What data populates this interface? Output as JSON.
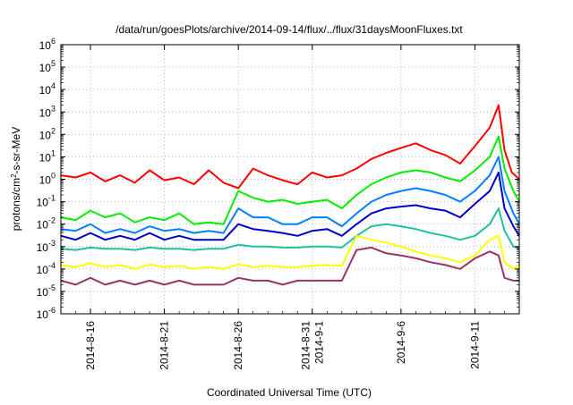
{
  "chart_data": {
    "type": "line",
    "title": "/data/run/goesPlots/archive/2014-09-14/flux/../flux/31daysMoonFluxes.txt",
    "xlabel": "Coordinated Universal Time (UTC)",
    "ylabel": "protons/cm²-s-sr-MeV",
    "yscale": "log",
    "ylim": [
      1e-06,
      1000000.0
    ],
    "xlim": [
      "2014-08-14",
      "2014-09-14"
    ],
    "grid": true,
    "legend": "none",
    "y_ticks": [
      {
        "base": "10",
        "exp": "-6"
      },
      {
        "base": "10",
        "exp": "-5"
      },
      {
        "base": "10",
        "exp": "-4"
      },
      {
        "base": "10",
        "exp": "-3"
      },
      {
        "base": "10",
        "exp": "-2"
      },
      {
        "base": "10",
        "exp": "-1"
      },
      {
        "base": "10",
        "exp": "0"
      },
      {
        "base": "10",
        "exp": "1"
      },
      {
        "base": "10",
        "exp": "2"
      },
      {
        "base": "10",
        "exp": "3"
      },
      {
        "base": "10",
        "exp": "4"
      },
      {
        "base": "10",
        "exp": "5"
      },
      {
        "base": "10",
        "exp": "6"
      }
    ],
    "x_ticks": [
      {
        "x": "2014-08-16",
        "lines": [
          "2014-8-16"
        ]
      },
      {
        "x": "2014-08-21",
        "lines": [
          "2014-8-21"
        ]
      },
      {
        "x": "2014-08-26",
        "lines": [
          "2014-8-26"
        ]
      },
      {
        "x": "2014-08-31",
        "lines": [
          "2014-8-31",
          "2014-9-1"
        ]
      },
      {
        "x": "2014-09-06",
        "lines": [
          "2014-9-6"
        ]
      },
      {
        "x": "2014-09-11",
        "lines": [
          "2014-9-11"
        ]
      }
    ],
    "series": [
      {
        "color": "#ff0000",
        "values": [
          [
            "2014-08-14",
            1.5
          ],
          [
            "2014-08-15",
            1.2
          ],
          [
            "2014-08-16",
            2.0
          ],
          [
            "2014-08-17",
            0.8
          ],
          [
            "2014-08-18",
            1.5
          ],
          [
            "2014-08-19",
            0.7
          ],
          [
            "2014-08-20",
            2.5
          ],
          [
            "2014-08-21",
            0.9
          ],
          [
            "2014-08-22",
            1.2
          ],
          [
            "2014-08-23",
            0.6
          ],
          [
            "2014-08-24",
            2.5
          ],
          [
            "2014-08-25",
            0.7
          ],
          [
            "2014-08-26",
            0.4
          ],
          [
            "2014-08-27",
            3.0
          ],
          [
            "2014-08-28",
            1.5
          ],
          [
            "2014-08-29",
            0.9
          ],
          [
            "2014-08-30",
            0.6
          ],
          [
            "2014-08-31",
            2.0
          ],
          [
            "2014-09-01",
            1.2
          ],
          [
            "2014-09-02",
            1.5
          ],
          [
            "2014-09-03",
            3.0
          ],
          [
            "2014-09-04",
            8
          ],
          [
            "2014-09-05",
            15
          ],
          [
            "2014-09-06",
            25
          ],
          [
            "2014-09-07",
            40
          ],
          [
            "2014-09-08",
            20
          ],
          [
            "2014-09-09",
            12
          ],
          [
            "2014-09-10",
            5
          ],
          [
            "2014-09-11",
            30
          ],
          [
            "2014-09-12",
            200
          ],
          [
            "2014-09-12.6",
            2000
          ],
          [
            "2014-09-13",
            20
          ],
          [
            "2014-09-13.5",
            2
          ],
          [
            "2014-09-14",
            1.0
          ]
        ]
      },
      {
        "color": "#00ee00",
        "values": [
          [
            "2014-08-14",
            0.02
          ],
          [
            "2014-08-15",
            0.015
          ],
          [
            "2014-08-16",
            0.04
          ],
          [
            "2014-08-17",
            0.02
          ],
          [
            "2014-08-18",
            0.03
          ],
          [
            "2014-08-19",
            0.012
          ],
          [
            "2014-08-20",
            0.02
          ],
          [
            "2014-08-21",
            0.015
          ],
          [
            "2014-08-22",
            0.03
          ],
          [
            "2014-08-23",
            0.01
          ],
          [
            "2014-08-24",
            0.012
          ],
          [
            "2014-08-25",
            0.01
          ],
          [
            "2014-08-26",
            0.3
          ],
          [
            "2014-08-27",
            0.15
          ],
          [
            "2014-08-28",
            0.1
          ],
          [
            "2014-08-29",
            0.12
          ],
          [
            "2014-08-30",
            0.08
          ],
          [
            "2014-08-31",
            0.1
          ],
          [
            "2014-09-01",
            0.12
          ],
          [
            "2014-09-02",
            0.05
          ],
          [
            "2014-09-03",
            0.2
          ],
          [
            "2014-09-04",
            0.6
          ],
          [
            "2014-09-05",
            1.2
          ],
          [
            "2014-09-06",
            2.0
          ],
          [
            "2014-09-07",
            2.5
          ],
          [
            "2014-09-08",
            2.0
          ],
          [
            "2014-09-09",
            1.2
          ],
          [
            "2014-09-10",
            0.8
          ],
          [
            "2014-09-11",
            2.5
          ],
          [
            "2014-09-12",
            10
          ],
          [
            "2014-09-12.6",
            80
          ],
          [
            "2014-09-13",
            3
          ],
          [
            "2014-09-13.6",
            0.3
          ],
          [
            "2014-09-14",
            0.1
          ]
        ]
      },
      {
        "color": "#0080ff",
        "values": [
          [
            "2014-08-14",
            0.006
          ],
          [
            "2014-08-15",
            0.005
          ],
          [
            "2014-08-16",
            0.01
          ],
          [
            "2014-08-17",
            0.004
          ],
          [
            "2014-08-18",
            0.006
          ],
          [
            "2014-08-19",
            0.004
          ],
          [
            "2014-08-20",
            0.008
          ],
          [
            "2014-08-21",
            0.005
          ],
          [
            "2014-08-22",
            0.006
          ],
          [
            "2014-08-23",
            0.004
          ],
          [
            "2014-08-24",
            0.005
          ],
          [
            "2014-08-25",
            0.004
          ],
          [
            "2014-08-26",
            0.05
          ],
          [
            "2014-08-27",
            0.02
          ],
          [
            "2014-08-28",
            0.02
          ],
          [
            "2014-08-29",
            0.01
          ],
          [
            "2014-08-30",
            0.01
          ],
          [
            "2014-08-31",
            0.02
          ],
          [
            "2014-09-01",
            0.02
          ],
          [
            "2014-09-02",
            0.008
          ],
          [
            "2014-09-03",
            0.03
          ],
          [
            "2014-09-04",
            0.1
          ],
          [
            "2014-09-05",
            0.2
          ],
          [
            "2014-09-06",
            0.3
          ],
          [
            "2014-09-07",
            0.4
          ],
          [
            "2014-09-08",
            0.3
          ],
          [
            "2014-09-09",
            0.2
          ],
          [
            "2014-09-10",
            0.1
          ],
          [
            "2014-09-11",
            0.3
          ],
          [
            "2014-09-12",
            1.5
          ],
          [
            "2014-09-12.6",
            10
          ],
          [
            "2014-09-13",
            0.3
          ],
          [
            "2014-09-13.6",
            0.03
          ],
          [
            "2014-09-14",
            0.01
          ]
        ]
      },
      {
        "color": "#0000cc",
        "values": [
          [
            "2014-08-14",
            0.003
          ],
          [
            "2014-08-15",
            0.002
          ],
          [
            "2014-08-16",
            0.004
          ],
          [
            "2014-08-17",
            0.002
          ],
          [
            "2014-08-18",
            0.003
          ],
          [
            "2014-08-19",
            0.002
          ],
          [
            "2014-08-20",
            0.004
          ],
          [
            "2014-08-21",
            0.002
          ],
          [
            "2014-08-22",
            0.003
          ],
          [
            "2014-08-23",
            0.002
          ],
          [
            "2014-08-24",
            0.002
          ],
          [
            "2014-08-25",
            0.002
          ],
          [
            "2014-08-26",
            0.01
          ],
          [
            "2014-08-27",
            0.006
          ],
          [
            "2014-08-28",
            0.005
          ],
          [
            "2014-08-29",
            0.004
          ],
          [
            "2014-08-30",
            0.003
          ],
          [
            "2014-08-31",
            0.005
          ],
          [
            "2014-09-01",
            0.006
          ],
          [
            "2014-09-02",
            0.003
          ],
          [
            "2014-09-03",
            0.01
          ],
          [
            "2014-09-04",
            0.03
          ],
          [
            "2014-09-05",
            0.05
          ],
          [
            "2014-09-06",
            0.06
          ],
          [
            "2014-09-07",
            0.07
          ],
          [
            "2014-09-08",
            0.05
          ],
          [
            "2014-09-09",
            0.04
          ],
          [
            "2014-09-10",
            0.02
          ],
          [
            "2014-09-11",
            0.08
          ],
          [
            "2014-09-12",
            0.3
          ],
          [
            "2014-09-12.6",
            2
          ],
          [
            "2014-09-13",
            0.05
          ],
          [
            "2014-09-13.6",
            0.008
          ],
          [
            "2014-09-14",
            0.003
          ]
        ]
      },
      {
        "color": "#20c0a0",
        "values": [
          [
            "2014-08-14",
            0.0008
          ],
          [
            "2014-08-15",
            0.0007
          ],
          [
            "2014-08-16",
            0.0009
          ],
          [
            "2014-08-17",
            0.0008
          ],
          [
            "2014-08-18",
            0.0008
          ],
          [
            "2014-08-19",
            0.0007
          ],
          [
            "2014-08-20",
            0.0009
          ],
          [
            "2014-08-21",
            0.0008
          ],
          [
            "2014-08-22",
            0.0008
          ],
          [
            "2014-08-23",
            0.0007
          ],
          [
            "2014-08-24",
            0.0008
          ],
          [
            "2014-08-25",
            0.0008
          ],
          [
            "2014-08-26",
            0.0012
          ],
          [
            "2014-08-27",
            0.001
          ],
          [
            "2014-08-28",
            0.001
          ],
          [
            "2014-08-29",
            0.0009
          ],
          [
            "2014-08-30",
            0.0009
          ],
          [
            "2014-08-31",
            0.001
          ],
          [
            "2014-09-01",
            0.001
          ],
          [
            "2014-09-02",
            0.0009
          ],
          [
            "2014-09-03",
            0.003
          ],
          [
            "2014-09-04",
            0.008
          ],
          [
            "2014-09-05",
            0.01
          ],
          [
            "2014-09-06",
            0.008
          ],
          [
            "2014-09-07",
            0.006
          ],
          [
            "2014-09-08",
            0.004
          ],
          [
            "2014-09-09",
            0.003
          ],
          [
            "2014-09-10",
            0.002
          ],
          [
            "2014-09-11",
            0.003
          ],
          [
            "2014-09-12",
            0.01
          ],
          [
            "2014-09-12.6",
            0.05
          ],
          [
            "2014-09-13",
            0.005
          ],
          [
            "2014-09-13.6",
            0.001
          ],
          [
            "2014-09-14",
            0.0008
          ]
        ]
      },
      {
        "color": "#ffff00",
        "values": [
          [
            "2014-08-14",
            0.00015
          ],
          [
            "2014-08-15",
            0.00012
          ],
          [
            "2014-08-16",
            0.00018
          ],
          [
            "2014-08-17",
            0.00012
          ],
          [
            "2014-08-18",
            0.00015
          ],
          [
            "2014-08-19",
            0.0001
          ],
          [
            "2014-08-20",
            0.00016
          ],
          [
            "2014-08-21",
            0.00012
          ],
          [
            "2014-08-22",
            0.00014
          ],
          [
            "2014-08-23",
            0.0001
          ],
          [
            "2014-08-24",
            0.00012
          ],
          [
            "2014-08-25",
            0.0001
          ],
          [
            "2014-08-26",
            0.00016
          ],
          [
            "2014-08-27",
            0.00012
          ],
          [
            "2014-08-28",
            0.00014
          ],
          [
            "2014-08-29",
            0.00012
          ],
          [
            "2014-08-30",
            0.00012
          ],
          [
            "2014-08-31",
            0.00014
          ],
          [
            "2014-09-01",
            0.00015
          ],
          [
            "2014-09-02",
            0.00014
          ],
          [
            "2014-09-03",
            0.003
          ],
          [
            "2014-09-04",
            0.002
          ],
          [
            "2014-09-05",
            0.0015
          ],
          [
            "2014-09-06",
            0.001
          ],
          [
            "2014-09-07",
            0.0006
          ],
          [
            "2014-09-08",
            0.0004
          ],
          [
            "2014-09-09",
            0.0003
          ],
          [
            "2014-09-10",
            0.0002
          ],
          [
            "2014-09-11",
            0.0004
          ],
          [
            "2014-09-12",
            0.002
          ],
          [
            "2014-09-12.6",
            0.003
          ],
          [
            "2014-09-13",
            0.0002
          ],
          [
            "2014-09-13.6",
            0.0001
          ],
          [
            "2014-09-14",
            0.00015
          ]
        ]
      },
      {
        "color": "#993366",
        "values": [
          [
            "2014-08-14",
            3e-05
          ],
          [
            "2014-08-15",
            2e-05
          ],
          [
            "2014-08-16",
            4e-05
          ],
          [
            "2014-08-17",
            2e-05
          ],
          [
            "2014-08-18",
            3e-05
          ],
          [
            "2014-08-19",
            2e-05
          ],
          [
            "2014-08-20",
            3e-05
          ],
          [
            "2014-08-21",
            2e-05
          ],
          [
            "2014-08-22",
            3e-05
          ],
          [
            "2014-08-23",
            2e-05
          ],
          [
            "2014-08-24",
            2e-05
          ],
          [
            "2014-08-25",
            2e-05
          ],
          [
            "2014-08-26",
            4e-05
          ],
          [
            "2014-08-27",
            3e-05
          ],
          [
            "2014-08-28",
            3e-05
          ],
          [
            "2014-08-29",
            2e-05
          ],
          [
            "2014-08-30",
            3e-05
          ],
          [
            "2014-08-31",
            3e-05
          ],
          [
            "2014-09-01",
            3e-05
          ],
          [
            "2014-09-02",
            3e-05
          ],
          [
            "2014-09-03",
            0.0007
          ],
          [
            "2014-09-04",
            0.0009
          ],
          [
            "2014-09-05",
            0.0005
          ],
          [
            "2014-09-06",
            0.0004
          ],
          [
            "2014-09-07",
            0.0003
          ],
          [
            "2014-09-08",
            0.0002
          ],
          [
            "2014-09-09",
            0.00015
          ],
          [
            "2014-09-10",
            0.0001
          ],
          [
            "2014-09-11",
            0.0003
          ],
          [
            "2014-09-12",
            0.0006
          ],
          [
            "2014-09-12.6",
            0.0004
          ],
          [
            "2014-09-13",
            4e-05
          ],
          [
            "2014-09-13.6",
            3e-05
          ],
          [
            "2014-09-14",
            3e-05
          ]
        ]
      }
    ]
  }
}
